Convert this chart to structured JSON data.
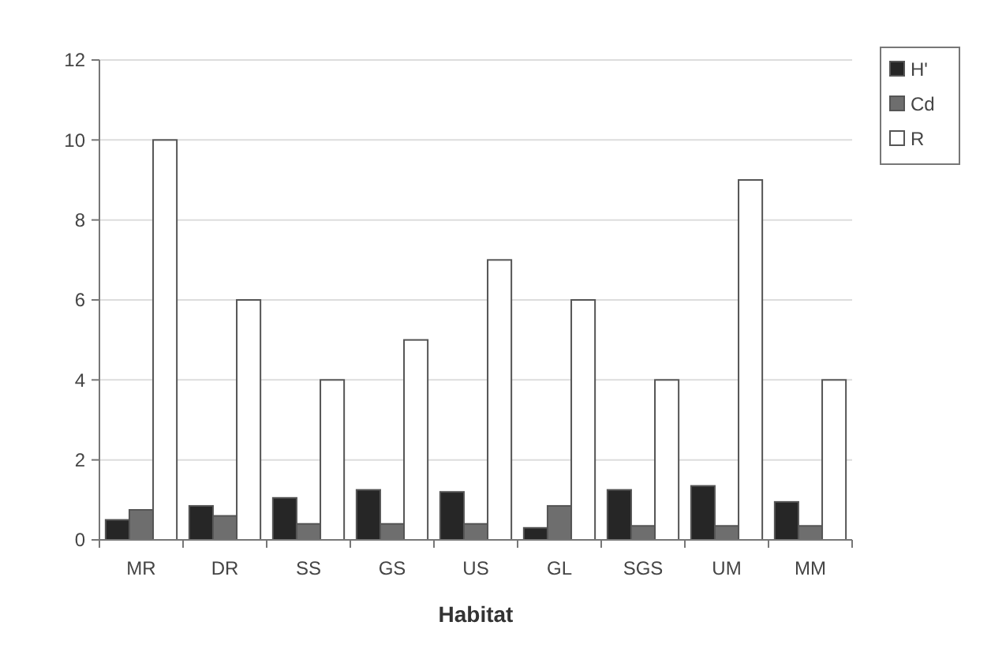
{
  "chart_data": {
    "type": "bar",
    "xlabel": "Habitat",
    "categories": [
      "MR",
      "DR",
      "SS",
      "GS",
      "US",
      "GL",
      "SGS",
      "UM",
      "MM"
    ],
    "series": [
      {
        "name": "H'",
        "color": "#262626",
        "values": [
          0.5,
          0.85,
          1.05,
          1.25,
          1.2,
          0.3,
          1.25,
          1.35,
          0.95
        ]
      },
      {
        "name": "Cd",
        "color": "#6e6e6e",
        "values": [
          0.75,
          0.6,
          0.4,
          0.4,
          0.4,
          0.85,
          0.35,
          0.35,
          0.35
        ]
      },
      {
        "name": "R",
        "color": "#ffffff",
        "values": [
          10,
          6,
          4,
          5,
          7,
          6,
          4,
          9,
          4
        ]
      }
    ],
    "ylim": [
      0,
      12
    ],
    "yticks": [
      0,
      2,
      4,
      6,
      8,
      10,
      12
    ],
    "grid": "y",
    "legend": "top right"
  }
}
